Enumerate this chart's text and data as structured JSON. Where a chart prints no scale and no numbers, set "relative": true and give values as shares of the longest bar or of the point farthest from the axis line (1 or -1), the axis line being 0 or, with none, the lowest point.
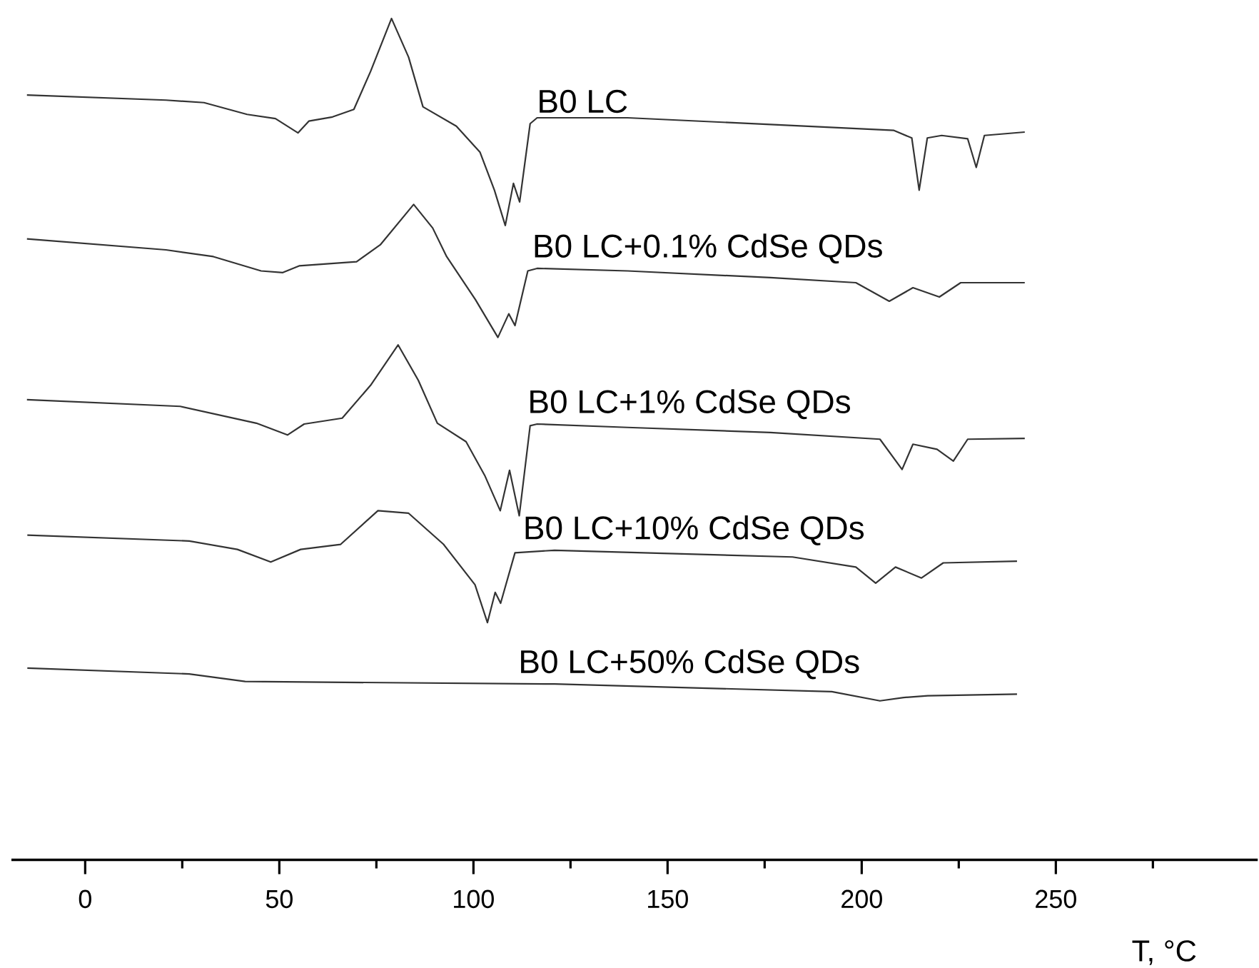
{
  "chart_data": {
    "type": "line",
    "relative": true,
    "xlabel": "T, °C",
    "xlim": [
      -19,
      302
    ],
    "xticks": [
      0,
      {
        "value": 25,
        "label": null
      },
      50,
      {
        "value": 75,
        "label": null
      },
      100,
      {
        "value": 125,
        "label": null
      },
      150,
      {
        "value": 175,
        "label": null
      },
      200,
      {
        "value": 225,
        "label": null
      },
      250,
      {
        "value": 275,
        "label": null
      }
    ],
    "series": [
      {
        "name": "B0 LC",
        "color": "#333333",
        "x": [
          -15,
          20.8,
          30.6,
          41.7,
          49,
          54.8,
          57.6,
          63.7,
          69.2,
          73.5,
          78.9,
          83.3,
          87,
          95.6,
          101.7,
          105.4,
          108.2,
          110.3,
          111.9,
          114.6,
          116.4,
          139.7,
          176.5,
          208.3,
          212.9,
          214.8,
          216.9,
          220.6,
          227.3,
          229.5,
          231.6,
          242
        ],
        "values": [
          0.909,
          0.903,
          0.9,
          0.886,
          0.881,
          0.864,
          0.878,
          0.883,
          0.892,
          0.937,
          1.0,
          0.954,
          0.895,
          0.872,
          0.841,
          0.796,
          0.754,
          0.804,
          0.782,
          0.875,
          0.882,
          0.882,
          0.874,
          0.867,
          0.858,
          0.796,
          0.858,
          0.861,
          0.857,
          0.823,
          0.861,
          0.865
        ]
      },
      {
        "name": "B0 LC+0.1% CdSe QDs",
        "color": "#333333",
        "x": [
          -15,
          20.8,
          33,
          45.3,
          50.9,
          55.1,
          69.9,
          76,
          84.6,
          89.5,
          93.1,
          100.5,
          106.3,
          109.1,
          110.7,
          114,
          116.4,
          139.7,
          176.5,
          198.5,
          207.1,
          213.2,
          220,
          225.5,
          242
        ],
        "values": [
          0.738,
          0.725,
          0.717,
          0.7,
          0.698,
          0.706,
          0.711,
          0.731,
          0.779,
          0.751,
          0.717,
          0.666,
          0.621,
          0.649,
          0.635,
          0.7,
          0.703,
          0.7,
          0.692,
          0.686,
          0.664,
          0.68,
          0.669,
          0.686,
          0.686
        ]
      },
      {
        "name": "B0 LC+1% CdSe QDs",
        "color": "#333333",
        "x": [
          -15,
          24.5,
          44.1,
          52.1,
          56.4,
          66.2,
          73.5,
          80.6,
          85.8,
          90.7,
          98.1,
          102.9,
          106.9,
          109.3,
          111.8,
          114.6,
          116.4,
          139.7,
          176.5,
          204.7,
          210.4,
          213.2,
          219.4,
          223.6,
          227.3,
          242
        ],
        "values": [
          0.547,
          0.539,
          0.519,
          0.505,
          0.518,
          0.525,
          0.564,
          0.612,
          0.57,
          0.519,
          0.497,
          0.457,
          0.415,
          0.463,
          0.409,
          0.516,
          0.518,
          0.514,
          0.508,
          0.5,
          0.464,
          0.494,
          0.488,
          0.474,
          0.5,
          0.501
        ]
      },
      {
        "name": "B0 LC+10% CdSe QDs",
        "color": "#333333",
        "x": [
          -14.9,
          26.8,
          39.2,
          47.8,
          55.5,
          65.8,
          75.4,
          83.3,
          92.3,
          100.4,
          103.6,
          105.6,
          107,
          110.7,
          120.9,
          182.2,
          198.5,
          203.6,
          208.7,
          215.4,
          221,
          240
        ],
        "values": [
          0.386,
          0.379,
          0.369,
          0.354,
          0.369,
          0.375,
          0.415,
          0.412,
          0.375,
          0.327,
          0.282,
          0.318,
          0.305,
          0.365,
          0.368,
          0.36,
          0.348,
          0.329,
          0.348,
          0.335,
          0.353,
          0.355
        ]
      },
      {
        "name": "B0 LC+50% CdSe QDs",
        "color": "#333333",
        "x": [
          -14.9,
          26.8,
          41.2,
          120.9,
          192.3,
          204.7,
          210.8,
          217,
          240
        ],
        "values": [
          0.228,
          0.221,
          0.212,
          0.209,
          0.2,
          0.189,
          0.193,
          0.195,
          0.197
        ]
      }
    ]
  }
}
